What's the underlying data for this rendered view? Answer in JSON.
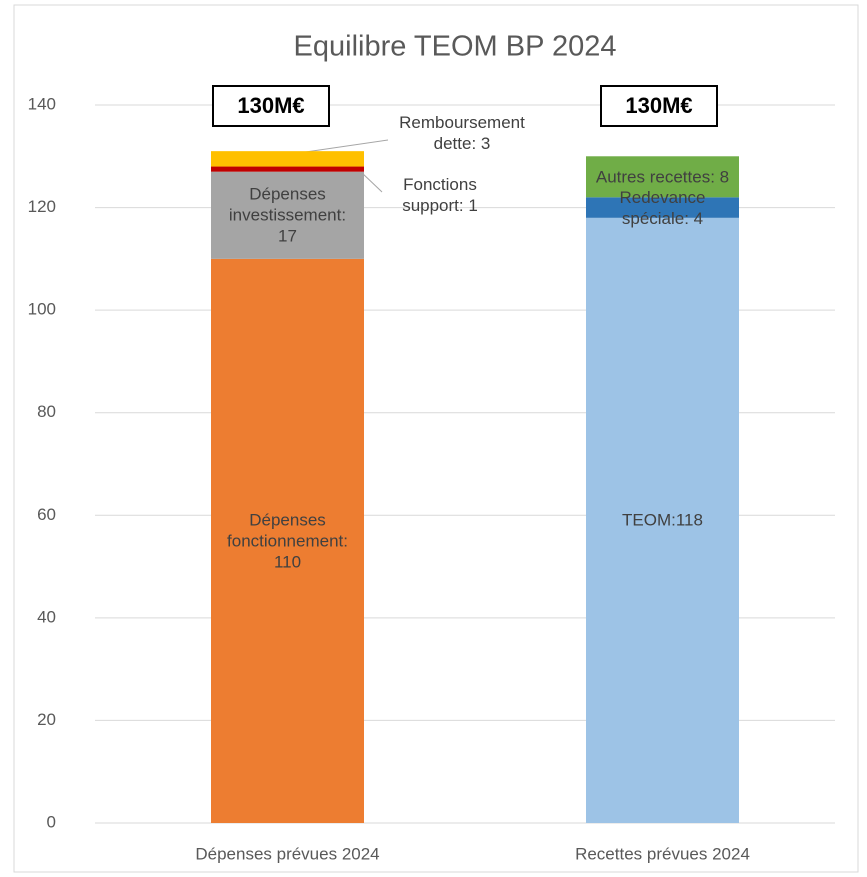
{
  "chart_data": {
    "type": "stacked_bar",
    "title": "Equilibre TEOM BP 2024",
    "categories": [
      "Dépenses prévues 2024",
      "Recettes prévues 2024"
    ],
    "series": [
      {
        "color": "#ed7d31",
        "values": [
          110,
          null
        ],
        "value_labels": [
          "Dépenses fonctionnement: 110",
          null
        ]
      },
      {
        "color": "#a5a5a5",
        "values": [
          17,
          null
        ],
        "value_labels": [
          "Dépenses investissement: 17",
          null
        ]
      },
      {
        "color": "#c00000",
        "values": [
          1,
          null
        ],
        "value_labels": [
          "Fonctions support: 1",
          null
        ]
      },
      {
        "color": "#ffc000",
        "values": [
          3,
          null
        ],
        "value_labels": [
          "Remboursement dette: 3",
          null
        ]
      },
      {
        "color": "#9dc3e6",
        "values": [
          null,
          118
        ],
        "value_labels": [
          null,
          "TEOM:118"
        ]
      },
      {
        "color": "#2e75b6",
        "values": [
          null,
          4
        ],
        "value_labels": [
          null,
          "Redevance spéciale: 4"
        ]
      },
      {
        "color": "#70ad47",
        "values": [
          null,
          8
        ],
        "value_labels": [
          null,
          "Autres recettes: 8"
        ]
      }
    ],
    "annotations": [
      "130M€",
      "130M€"
    ],
    "ylim": [
      0,
      140
    ],
    "yticks": [
      0,
      20,
      40,
      60,
      80,
      100,
      120,
      140
    ],
    "grid": true
  }
}
